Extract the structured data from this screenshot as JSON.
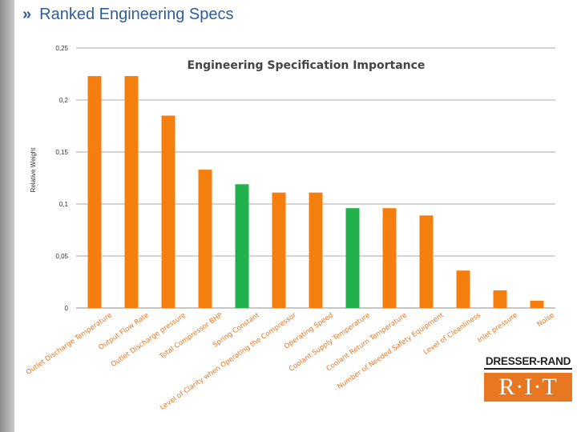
{
  "slide": {
    "chevrons": "»",
    "title": "Ranked Engineering Specs"
  },
  "brand": {
    "name": "DRESSER-RAND",
    "logo": "R·I·T"
  },
  "colors": {
    "default_bar": "#f57f0e",
    "highlight_bar": "#22b14c",
    "grid": "#8c8c8c",
    "accent": "#2e5d9e"
  },
  "chart_data": {
    "type": "bar",
    "title": "Engineering Specification Importance",
    "xlabel": "",
    "ylabel": "Relative Weight",
    "ylim": [
      0,
      0.25
    ],
    "yticks": [
      0,
      0.05,
      0.1,
      0.15,
      0.2,
      0.25
    ],
    "ytick_labels": [
      "0",
      "0,05",
      "0,1",
      "0,15",
      "0,2",
      "0,25"
    ],
    "grid": "horizontal",
    "categories": [
      "Outlet Discharge Temperature",
      "Output Flow Rate",
      "Outlet Discharge pressure",
      "Total Compressor BHP",
      "Spring Constant",
      "Level of Clarity when Operating the Compressor",
      "Operating Speed",
      "Coolant Supply Temperature",
      "Coolant Return Temperature",
      "Number of Needed Safety Equipment",
      "Level of Cleanliness",
      "Inlet pressure",
      "Noise"
    ],
    "values": [
      0.223,
      0.223,
      0.185,
      0.133,
      0.119,
      0.111,
      0.111,
      0.096,
      0.096,
      0.089,
      0.036,
      0.017,
      0.007
    ],
    "highlighted": [
      false,
      false,
      false,
      false,
      true,
      false,
      false,
      true,
      false,
      false,
      false,
      false,
      false
    ]
  }
}
